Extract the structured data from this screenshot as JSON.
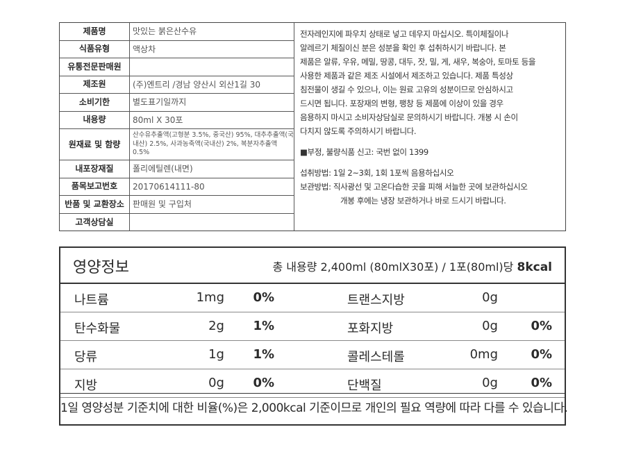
{
  "product_info": {
    "rows": [
      [
        "제품명",
        "맛있는 붉은산수유"
      ],
      [
        "식품유형",
        "액상차"
      ],
      [
        "유통전문판매원"
      ],
      [
        "제조원",
        "(주)엔트리 /경남 양산시 외산1길 30"
      ],
      [
        "소비기한",
        "별도표기일까지"
      ],
      [
        "내용량",
        "80ml X 30포"
      ],
      [
        "원재료 및 함량",
        "산수유추출액(고형분 3.5%, 중국산) 95%, 대추추출액(국내산) 2.5%, 사과농축액(국내산) 2%, 복분자추출액 0.5%"
      ],
      [
        "내포장재질",
        "폴리에틸렌(내면)"
      ],
      [
        "품목보고번호",
        "20170614111-80"
      ],
      [
        "반품 및 교환장소",
        "판매원 및 구입처"
      ],
      [
        "고객상담실"
      ]
    ]
  },
  "notice": {
    "lines": [
      "전자레인지에 파우치 상태로  넣고 데우지 마십시오. 특이체질이나",
      "알레르기 체질이신 분은 성분을 확인 후 섭취하시기 바랍니다. 본",
      "제품은 알류, 우유, 메밀, 땅콩, 대두, 잣, 밀, 게, 새우, 복숭아, 토마토 등을",
      "사용한 제품과 같은 제조 시설에서 제조하고 있습니다. 제품 특성상",
      "침전물이 생길 수 있으나, 이는 원료 고유의 성분이므로 안심하시고",
      "드시면 됩니다. 포장재의 변형, 팽창 등 제품에 이상이 있을 경우",
      "음용하지 마시고 소비자상담실로 문의하시기 바랍니다. 개봉 시 손이",
      "다치지 않도록 주의하시기 바랍니다."
    ],
    "report": "■부정, 불량식품 신고: 국번 없이 1399",
    "intake": "섭취방법: 1일 2~3회, 1회 1포씩 음용하십시오",
    "storage": [
      "보관방법: 직사광선 및 고온다습한 곳을 피해 서늘한 곳에 보관하십시오",
      "개봉 후에는 냉장 보관하거나 바로 드시기 바랍니다."
    ]
  },
  "nutrition": {
    "title": "영양정보",
    "serving": "총 내용량 2,400ml (80mlX30포) / 1포(80ml)당",
    "kcal": "8kcal",
    "rows": [
      {
        "left": {
          "name": "나트륨",
          "amount": "1mg",
          "percent": "0%"
        },
        "right": {
          "name": "트랜스지방",
          "amount": "0g"
        }
      },
      {
        "left": {
          "name": "탄수화물",
          "amount": "2g",
          "percent": "1%"
        },
        "right": {
          "name": "포화지방",
          "amount": "0g",
          "percent": "0%"
        }
      },
      {
        "left": {
          "name": "당류",
          "amount": "1g",
          "percent": "1%"
        },
        "right": {
          "name": "콜레스테롤",
          "amount": "0mg",
          "percent": "0%"
        }
      },
      {
        "left": {
          "name": "지방",
          "amount": "0g",
          "percent": "0%"
        },
        "right": {
          "name": "단백질",
          "amount": "0g",
          "percent": "0%"
        }
      }
    ],
    "footer": "1일 영양성분 기준치에 대한 비율(%)은 2,000kcal 기준이므로 개인의 필요 역량에 따라 다를 수 있습니다."
  }
}
